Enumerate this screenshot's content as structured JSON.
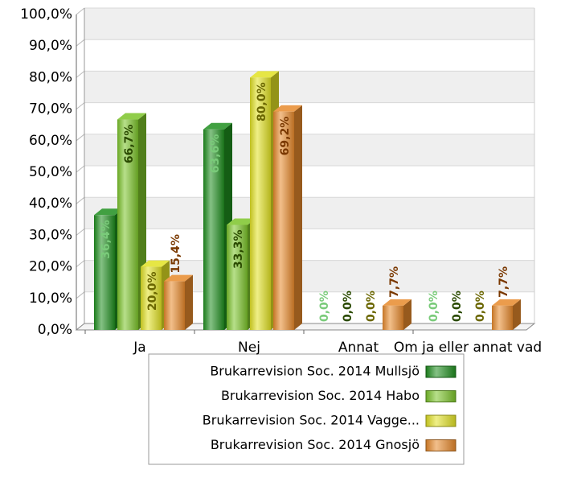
{
  "chart_data": {
    "type": "bar3d",
    "categories": [
      "Ja",
      "Nej",
      "Annat",
      "Om ja eller annat vad"
    ],
    "ylim": [
      0,
      100
    ],
    "yticks": [
      {
        "value": 0,
        "label": "0,0%"
      },
      {
        "value": 10,
        "label": "10,0%"
      },
      {
        "value": 20,
        "label": "20,0%"
      },
      {
        "value": 30,
        "label": "30,0%"
      },
      {
        "value": 40,
        "label": "40,0%"
      },
      {
        "value": 50,
        "label": "50,0%"
      },
      {
        "value": 60,
        "label": "60,0%"
      },
      {
        "value": 70,
        "label": "70,0%"
      },
      {
        "value": 80,
        "label": "80,0%"
      },
      {
        "value": 90,
        "label": "90,0%"
      },
      {
        "value": 100,
        "label": "100,0%"
      }
    ],
    "grid": true,
    "series": [
      {
        "name": "Brukarrevision Soc. 2014 Mullsjö",
        "color": "#1f8f1f",
        "label_color": "#7acb7a",
        "values": [
          36.4,
          63.6,
          0,
          0
        ],
        "value_labels": [
          "36,4%",
          "63,6%",
          "0,0%",
          "0,0%"
        ]
      },
      {
        "name": "Brukarrevision Soc. 2014 Habo",
        "color": "#7cc42a",
        "label_color": "#2a4a00",
        "values": [
          66.7,
          33.3,
          0,
          0
        ],
        "value_labels": [
          "66,7%",
          "33,3%",
          "0,0%",
          "0,0%"
        ]
      },
      {
        "name": "Brukarrevision Soc. 2014 Vagge...",
        "color": "#e2e224",
        "label_color": "#6a6600",
        "values": [
          20.0,
          80.0,
          0,
          0
        ],
        "value_labels": [
          "20,0%",
          "80,0%",
          "0,0%",
          "0,0%"
        ]
      },
      {
        "name": "Brukarrevision Soc. 2014 Gnosjö",
        "color": "#e88a2c",
        "label_color": "#7a3800",
        "values": [
          15.4,
          69.2,
          7.7,
          7.7
        ],
        "value_labels": [
          "15,4%",
          "69,2%",
          "7,7%",
          "7,7%"
        ]
      }
    ]
  }
}
